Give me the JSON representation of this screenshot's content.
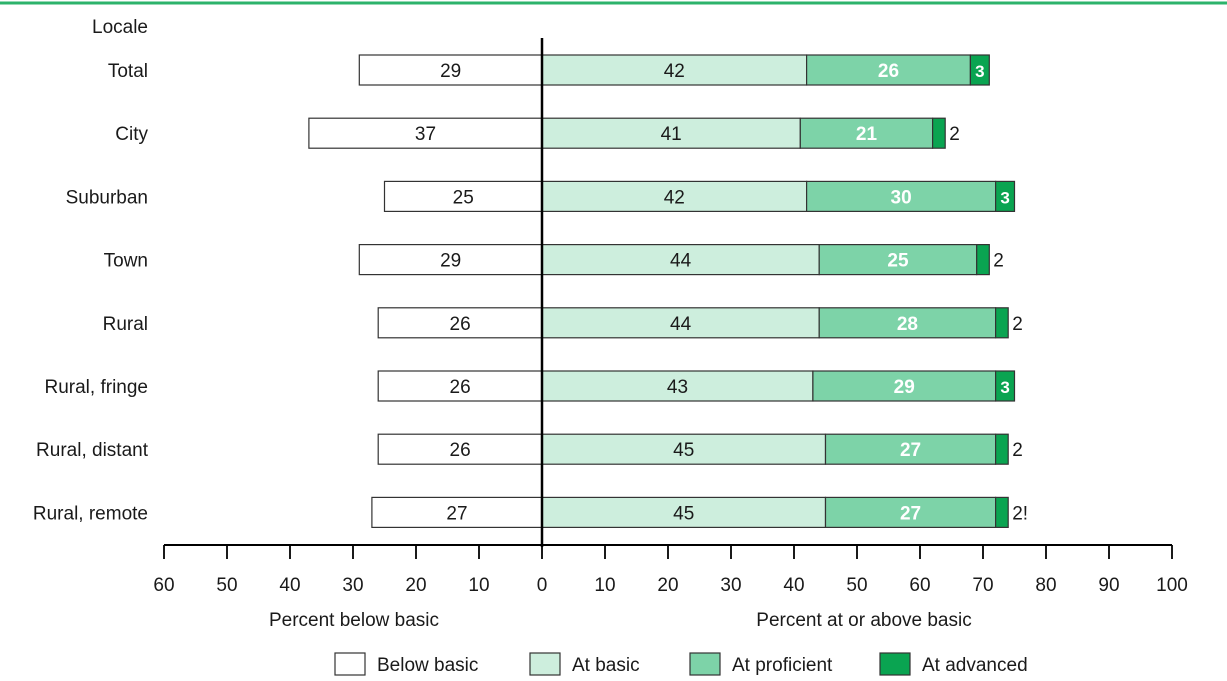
{
  "chart_data": {
    "type": "bar",
    "orientation": "horizontal",
    "stacked": true,
    "diverging": true,
    "header_label": "Locale",
    "categories": [
      "Total",
      "City",
      "Suburban",
      "Town",
      "Rural",
      "Rural, fringe",
      "Rural, distant",
      "Rural, remote"
    ],
    "series": [
      {
        "name": "Below basic",
        "color": "#ffffff",
        "values": [
          29,
          37,
          25,
          29,
          26,
          26,
          26,
          27
        ],
        "labels": [
          "29",
          "37",
          "25",
          "29",
          "26",
          "26",
          "26",
          "27"
        ]
      },
      {
        "name": "At basic",
        "color": "#cdeedd",
        "values": [
          42,
          41,
          42,
          44,
          44,
          43,
          45,
          45
        ],
        "labels": [
          "42",
          "41",
          "42",
          "44",
          "44",
          "43",
          "45",
          "45"
        ]
      },
      {
        "name": "At proficient",
        "color": "#7dd3a8",
        "values": [
          26,
          21,
          30,
          25,
          28,
          29,
          27,
          27
        ],
        "labels": [
          "26",
          "21",
          "30",
          "25",
          "28",
          "29",
          "27",
          "27"
        ]
      },
      {
        "name": "At advanced",
        "color": "#0aa451",
        "values": [
          3,
          2,
          3,
          2,
          2,
          3,
          2,
          2
        ],
        "labels": [
          "3",
          "2",
          "3",
          "2",
          "2",
          "3",
          "2",
          "2!"
        ]
      }
    ],
    "x_axis": {
      "tick_labels": [
        "60",
        "50",
        "40",
        "30",
        "20",
        "10",
        "0",
        "10",
        "20",
        "30",
        "40",
        "50",
        "60",
        "70",
        "80",
        "90",
        "100"
      ],
      "left_label": "Percent below basic",
      "right_label": "Percent at or above basic",
      "range": [
        -60,
        100
      ]
    },
    "legend": {
      "position": "bottom",
      "items": [
        {
          "label": "Below basic",
          "color": "#ffffff"
        },
        {
          "label": "At basic",
          "color": "#cdeedd"
        },
        {
          "label": "At proficient",
          "color": "#7dd3a8"
        },
        {
          "label": "At advanced",
          "color": "#0aa451"
        }
      ]
    },
    "top_rule_color": "#2db36b"
  }
}
